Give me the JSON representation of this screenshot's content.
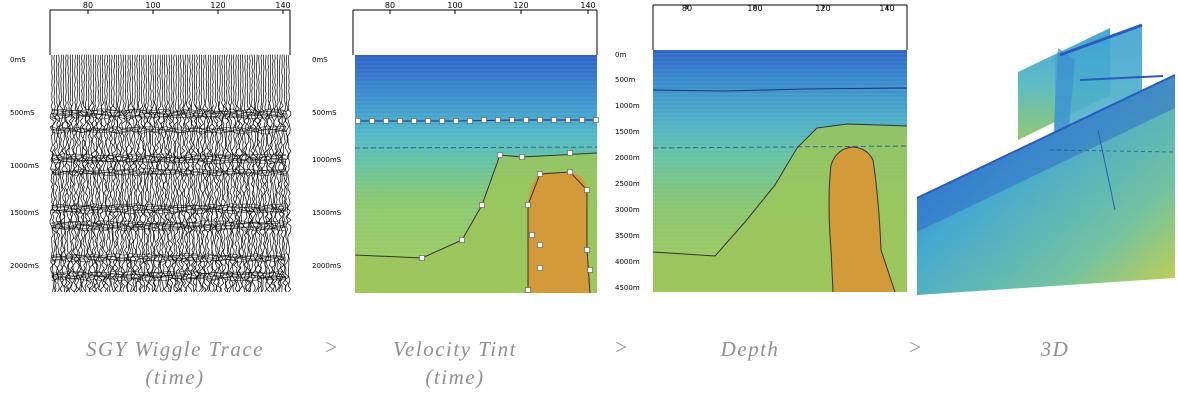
{
  "panels": [
    {
      "x_ticks": [
        "80",
        "100",
        "120",
        "140"
      ],
      "y_ticks": [
        "0mS",
        "500mS",
        "1000mS",
        "1500mS",
        "2000mS"
      ]
    },
    {
      "x_ticks": [
        "80",
        "100",
        "120",
        "140"
      ],
      "y_ticks": [
        "0mS",
        "500mS",
        "1000mS",
        "1500mS",
        "2000mS"
      ]
    },
    {
      "x_ticks": [
        "80",
        "100",
        "120",
        "140"
      ],
      "y_ticks": [
        "0m",
        "500m",
        "1000m",
        "1500m",
        "2000m",
        "2500m",
        "3000m",
        "3500m",
        "4000m",
        "4500m"
      ]
    }
  ],
  "captions": [
    {
      "line1": "SGY Wiggle Trace",
      "line2": "(time)"
    },
    {
      "line1": "Velocity Tint",
      "line2": "(time)"
    },
    {
      "line1": "Depth",
      "line2": ""
    },
    {
      "line1": "3D",
      "line2": ""
    }
  ],
  "arrows": [
    ">",
    ">",
    ">"
  ],
  "colors": {
    "shallow_blue": "#2f6ecf",
    "mid_teal": "#41b6c4",
    "green": "#9cc95c",
    "salt_orange": "#d39a3a",
    "caption_gray": "#8f8f8f"
  }
}
